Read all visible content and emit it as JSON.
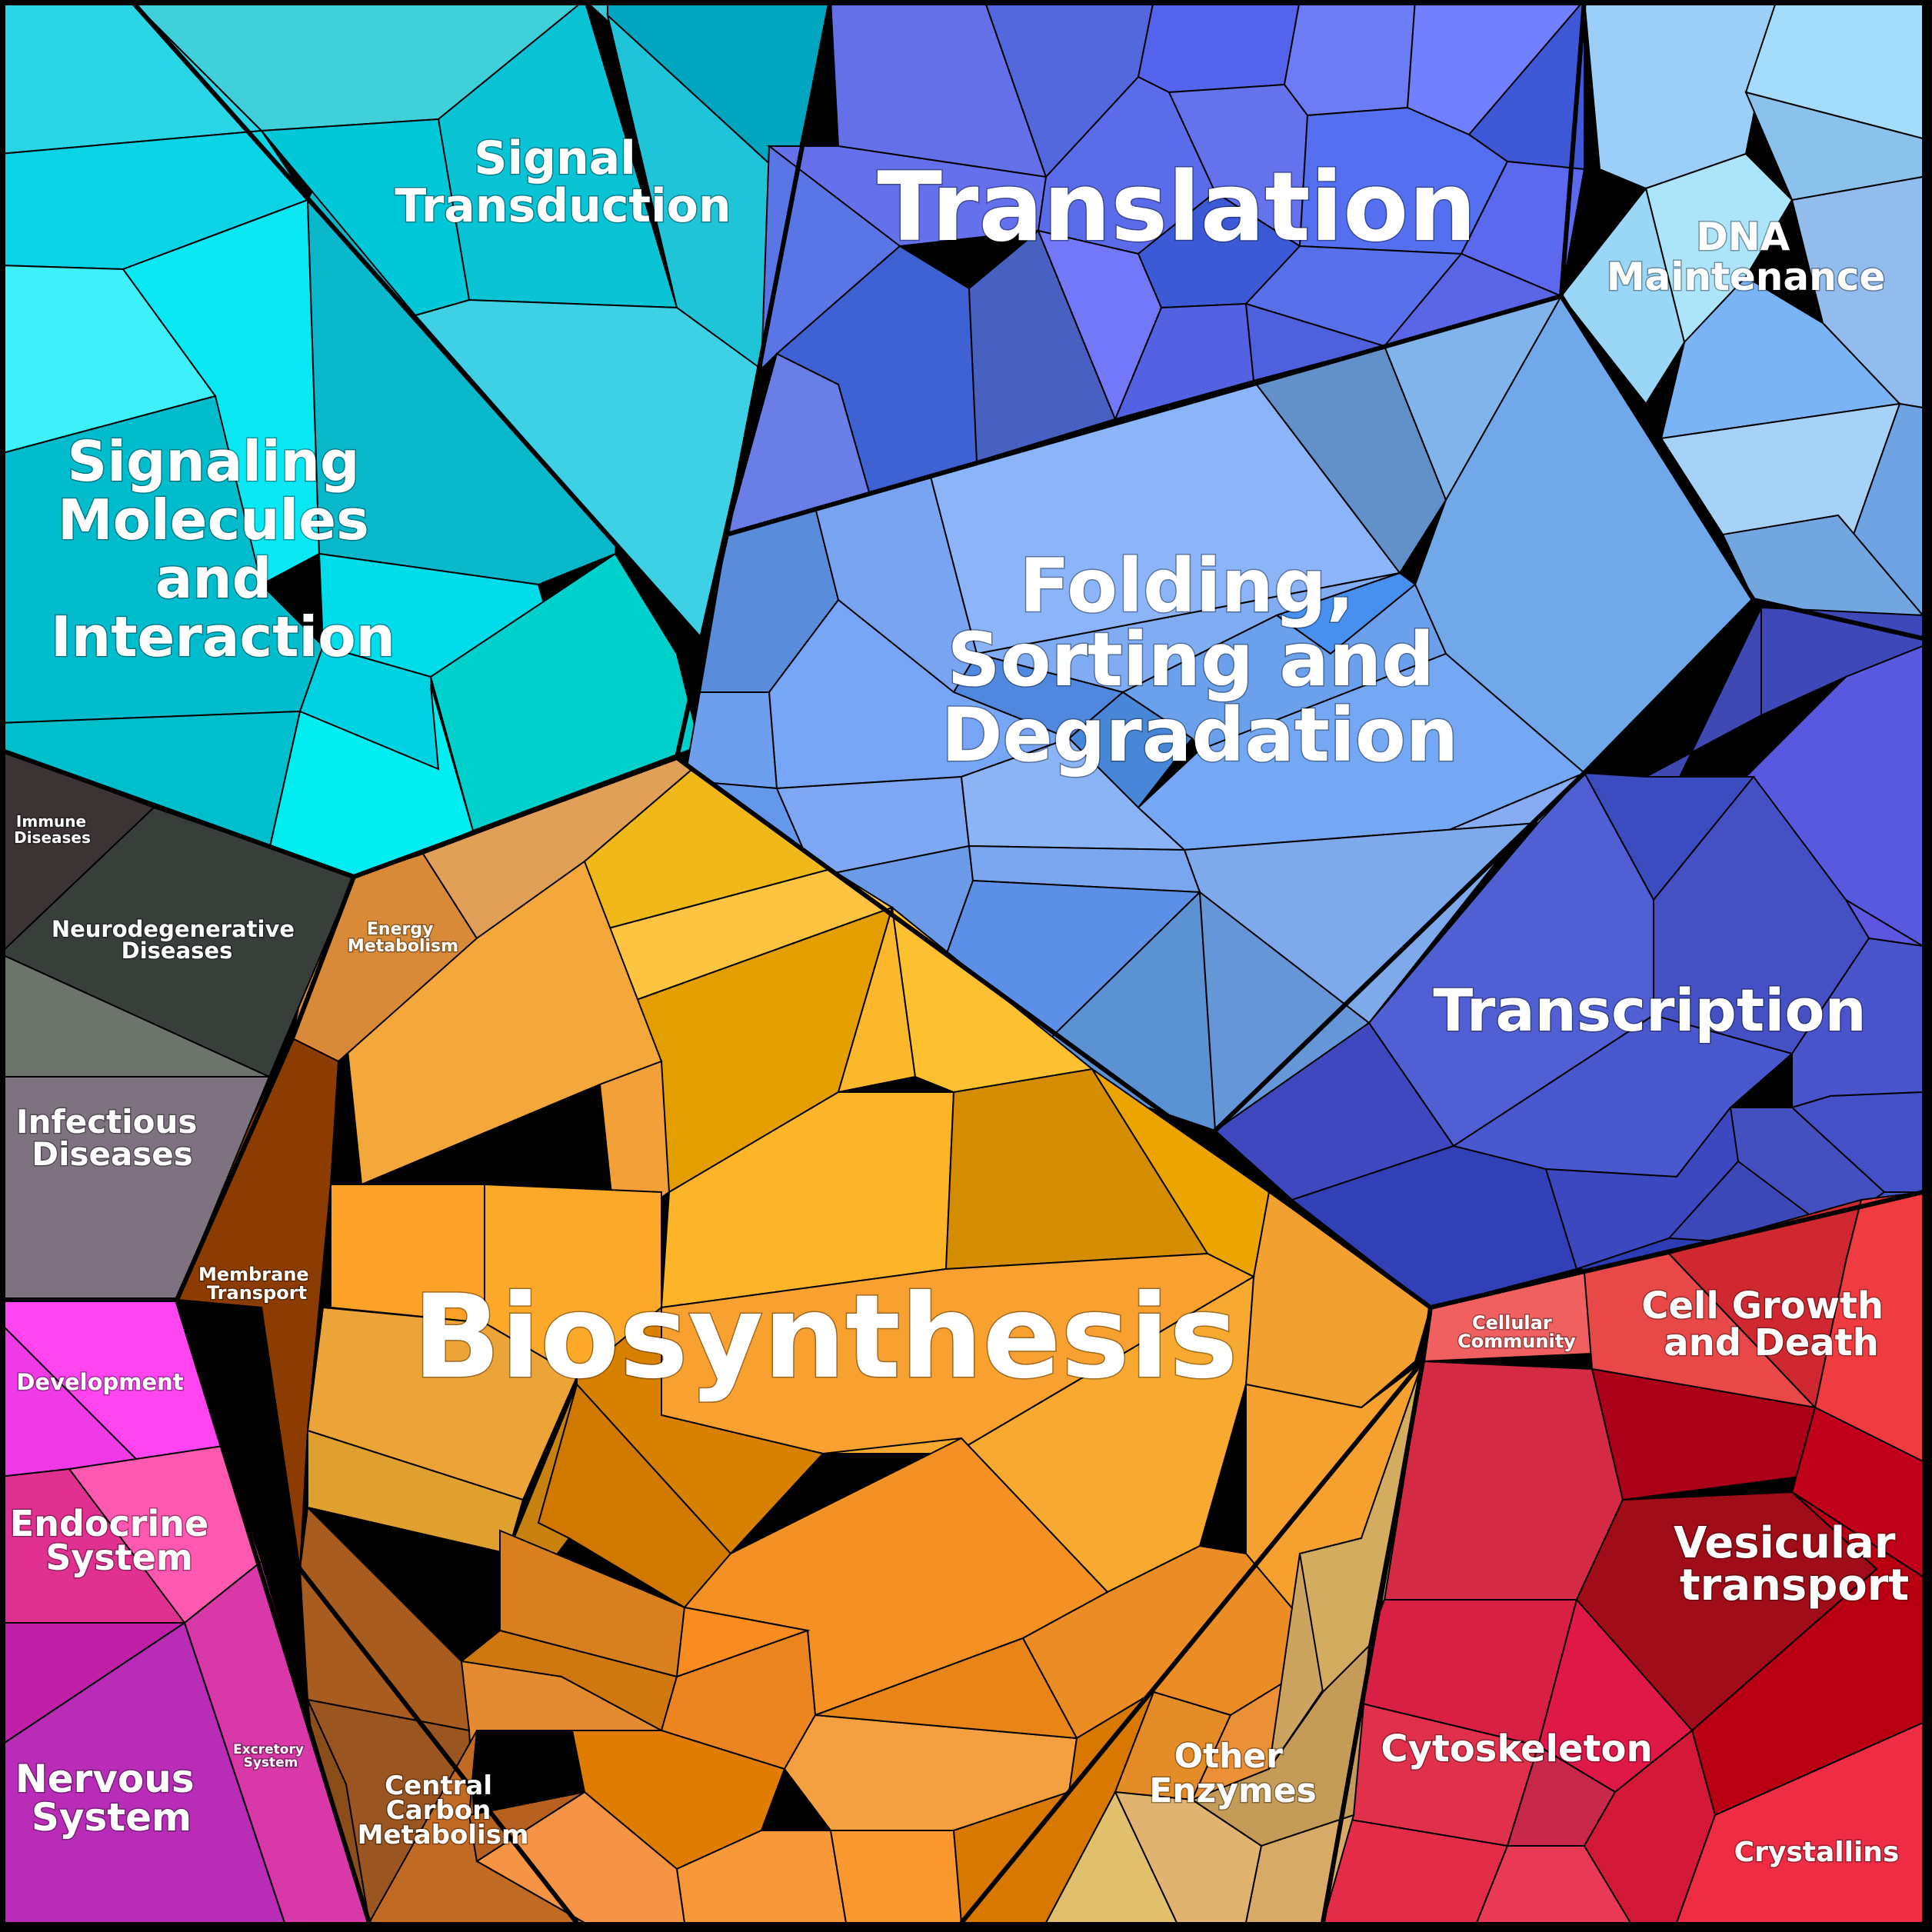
{
  "diagram": {
    "type": "voronoi-treemap",
    "categories": [
      {
        "id": "signaling",
        "label": [
          "Signaling",
          "Molecules",
          "and",
          "Interaction"
        ],
        "color": "#00c8dc"
      },
      {
        "id": "signal-transduction",
        "label": [
          "Signal",
          "Transduction"
        ],
        "color": "#00c4d4"
      },
      {
        "id": "translation",
        "label": [
          "Translation"
        ],
        "color": "#5a6ee6"
      },
      {
        "id": "dna-maintenance",
        "label": [
          "DNA",
          "Maintenance"
        ],
        "color": "#9ccff5"
      },
      {
        "id": "folding",
        "label": [
          "Folding,",
          "Sorting and",
          "Degradation"
        ],
        "color": "#78a8f0"
      },
      {
        "id": "transcription",
        "label": [
          "Transcription"
        ],
        "color": "#4650c8"
      },
      {
        "id": "biosynthesis",
        "label": [
          "Biosynthesis"
        ],
        "color": "#f0a030"
      },
      {
        "id": "energy-metabolism",
        "label": [
          "Energy",
          "Metabolism"
        ],
        "color": "#d88a38"
      },
      {
        "id": "membrane-transport",
        "label": [
          "Membrane",
          "Transport"
        ],
        "color": "#8c3c00"
      },
      {
        "id": "central-carbon",
        "label": [
          "Central",
          "Carbon",
          "Metabolism"
        ],
        "color": "#9a5520"
      },
      {
        "id": "other-enzymes",
        "label": [
          "Other",
          "Enzymes"
        ],
        "color": "#d8b068"
      },
      {
        "id": "immune",
        "label": [
          "Immune",
          "Diseases"
        ],
        "color": "#3c3434"
      },
      {
        "id": "neurodegenerative",
        "label": [
          "Neurodegenerative",
          "Diseases"
        ],
        "color": "#383e3a"
      },
      {
        "id": "infectious",
        "label": [
          "Infectious",
          "Diseases"
        ],
        "color": "#7e7280"
      },
      {
        "id": "development",
        "label": [
          "Development"
        ],
        "color": "#f03ae8"
      },
      {
        "id": "endocrine",
        "label": [
          "Endocrine",
          "System"
        ],
        "color": "#e03090"
      },
      {
        "id": "nervous",
        "label": [
          "Nervous",
          "System"
        ],
        "color": "#b82cb8"
      },
      {
        "id": "excretory",
        "label": [
          "Excretory",
          "System"
        ],
        "color": "#d838a8"
      },
      {
        "id": "cellular-community",
        "label": [
          "Cellular",
          "Community"
        ],
        "color": "#f06060"
      },
      {
        "id": "cell-growth",
        "label": [
          "Cell Growth",
          "and Death"
        ],
        "color": "#e84048"
      },
      {
        "id": "vesicular",
        "label": [
          "Vesicular",
          "transport"
        ],
        "color": "#a80010"
      },
      {
        "id": "cytoskeleton",
        "label": [
          "Cytoskeleton"
        ],
        "color": "#dc2c48"
      },
      {
        "id": "crystallins",
        "label": [
          "Crystallins"
        ],
        "color": "#f02c44"
      }
    ]
  }
}
